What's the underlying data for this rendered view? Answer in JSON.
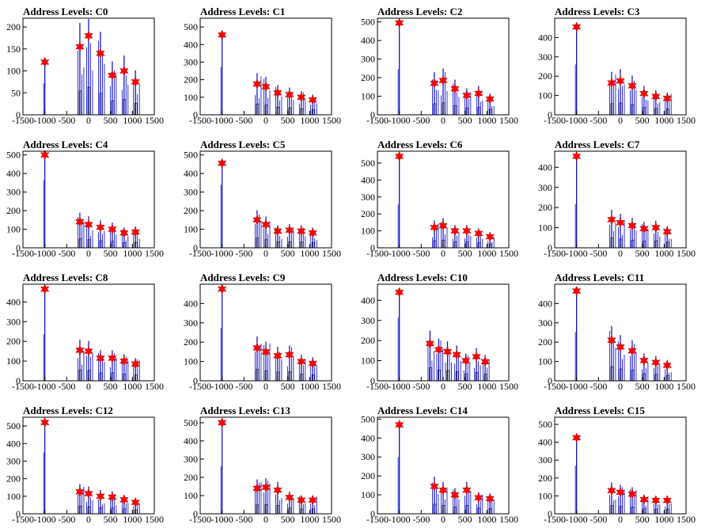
{
  "chart_data": [
    {
      "type": "bar",
      "title": "Address Levels: C0",
      "xlim": [
        -1500,
        1500
      ],
      "ylim": [
        0,
        220
      ],
      "xticks": [
        "-1500",
        "-1000",
        "-500",
        "0",
        "500",
        "1000",
        "1500"
      ],
      "yticks": [
        0,
        50,
        100,
        150,
        200
      ],
      "series": [
        {
          "x": [
            -1000,
            -200,
            0,
            270,
            540,
            810,
            1070
          ],
          "y": [
            120,
            155,
            180,
            140,
            90,
            100,
            75
          ]
        }
      ]
    },
    {
      "type": "bar",
      "title": "Address Levels: C1",
      "xlim": [
        -1500,
        1500
      ],
      "ylim": [
        0,
        550
      ],
      "xticks": [
        "-1500",
        "-1000",
        "-500",
        "0",
        "500",
        "1000",
        "1500"
      ],
      "yticks": [
        0,
        100,
        200,
        300,
        400,
        500
      ],
      "series": [
        {
          "x": [
            -1000,
            -200,
            0,
            270,
            540,
            810,
            1070
          ],
          "y": [
            455,
            175,
            160,
            125,
            115,
            100,
            85
          ]
        }
      ]
    },
    {
      "type": "bar",
      "title": "Address Levels: C2",
      "xlim": [
        -1500,
        1500
      ],
      "ylim": [
        0,
        520
      ],
      "xticks": [
        "-1500",
        "-1000",
        "-500",
        "0",
        "500",
        "1000",
        "1500"
      ],
      "yticks": [
        0,
        100,
        200,
        300,
        400,
        500
      ],
      "series": [
        {
          "x": [
            -1000,
            -200,
            0,
            270,
            540,
            810,
            1070
          ],
          "y": [
            495,
            170,
            185,
            140,
            105,
            115,
            85
          ]
        }
      ]
    },
    {
      "type": "bar",
      "title": "Address Levels: C3",
      "xlim": [
        -1500,
        1500
      ],
      "ylim": [
        0,
        500
      ],
      "xticks": [
        "-1500",
        "-1000",
        "-500",
        "0",
        "500",
        "1000",
        "1500"
      ],
      "yticks": [
        0,
        100,
        200,
        300,
        400
      ],
      "series": [
        {
          "x": [
            -1000,
            -200,
            0,
            270,
            540,
            810,
            1070
          ],
          "y": [
            455,
            165,
            175,
            150,
            110,
            95,
            85
          ]
        }
      ]
    },
    {
      "type": "bar",
      "title": "Address Levels: C4",
      "xlim": [
        -1500,
        1500
      ],
      "ylim": [
        0,
        520
      ],
      "xticks": [
        "-1500",
        "-1000",
        "-500",
        "0",
        "500",
        "1000",
        "1500"
      ],
      "yticks": [
        0,
        100,
        200,
        300,
        400,
        500
      ],
      "series": [
        {
          "x": [
            -1000,
            -200,
            0,
            270,
            540,
            810,
            1070
          ],
          "y": [
            500,
            140,
            125,
            110,
            100,
            80,
            85
          ]
        }
      ]
    },
    {
      "type": "bar",
      "title": "Address Levels: C5",
      "xlim": [
        -1500,
        1500
      ],
      "ylim": [
        0,
        520
      ],
      "xticks": [
        "-1500",
        "-1000",
        "-500",
        "0",
        "500",
        "1000",
        "1500"
      ],
      "yticks": [
        0,
        100,
        200,
        300,
        400,
        500
      ],
      "series": [
        {
          "x": [
            -1000,
            -200,
            0,
            270,
            540,
            810,
            1070
          ],
          "y": [
            455,
            150,
            125,
            90,
            95,
            90,
            80
          ]
        }
      ]
    },
    {
      "type": "bar",
      "title": "Address Levels: C6",
      "xlim": [
        -1500,
        1500
      ],
      "ylim": [
        0,
        570
      ],
      "xticks": [
        "-1500",
        "-1000",
        "-500",
        "0",
        "500",
        "1000",
        "1500"
      ],
      "yticks": [
        0,
        100,
        200,
        300,
        400,
        500
      ],
      "series": [
        {
          "x": [
            -1000,
            -200,
            0,
            270,
            540,
            810,
            1070
          ],
          "y": [
            540,
            120,
            130,
            100,
            100,
            85,
            65
          ]
        }
      ]
    },
    {
      "type": "bar",
      "title": "Address Levels: C7",
      "xlim": [
        -1500,
        1500
      ],
      "ylim": [
        0,
        480
      ],
      "xticks": [
        "-1500",
        "-1000",
        "-500",
        "0",
        "500",
        "1000",
        "1500"
      ],
      "yticks": [
        0,
        100,
        200,
        300,
        400
      ],
      "series": [
        {
          "x": [
            -1000,
            -200,
            0,
            270,
            540,
            810,
            1070
          ],
          "y": [
            455,
            140,
            125,
            110,
            95,
            100,
            80
          ]
        }
      ]
    },
    {
      "type": "bar",
      "title": "Address Levels: C8",
      "xlim": [
        -1500,
        1500
      ],
      "ylim": [
        0,
        490
      ],
      "xticks": [
        "-1500",
        "-1000",
        "-500",
        "0",
        "500",
        "1000",
        "1500"
      ],
      "yticks": [
        0,
        100,
        200,
        300,
        400
      ],
      "series": [
        {
          "x": [
            -1000,
            -200,
            0,
            270,
            540,
            810,
            1070
          ],
          "y": [
            465,
            155,
            150,
            115,
            115,
            100,
            85
          ]
        }
      ]
    },
    {
      "type": "bar",
      "title": "Address Levels: C9",
      "xlim": [
        -1500,
        1500
      ],
      "ylim": [
        0,
        500
      ],
      "xticks": [
        "-1500",
        "-1000",
        "-500",
        "0",
        "500",
        "1000",
        "1500"
      ],
      "yticks": [
        0,
        100,
        200,
        300,
        400
      ],
      "series": [
        {
          "x": [
            -1000,
            -200,
            0,
            270,
            540,
            810,
            1070
          ],
          "y": [
            475,
            170,
            150,
            130,
            135,
            100,
            90
          ]
        }
      ]
    },
    {
      "type": "bar",
      "title": "Address Levels: C10",
      "xlim": [
        -1500,
        1500
      ],
      "ylim": [
        0,
        480
      ],
      "xticks": [
        "-1500",
        "-1000",
        "-500",
        "0",
        "500",
        "1000",
        "1500"
      ],
      "yticks": [
        0,
        100,
        200,
        300,
        400
      ],
      "series": [
        {
          "x": [
            -1000,
            -300,
            -100,
            100,
            310,
            520,
            760,
            960
          ],
          "y": [
            440,
            185,
            155,
            145,
            130,
            100,
            120,
            95
          ]
        }
      ]
    },
    {
      "type": "bar",
      "title": "Address Levels: C11",
      "xlim": [
        -1500,
        1500
      ],
      "ylim": [
        0,
        500
      ],
      "xticks": [
        "-1500",
        "-1000",
        "-500",
        "0",
        "500",
        "1000",
        "1500"
      ],
      "yticks": [
        0,
        100,
        200,
        300,
        400
      ],
      "series": [
        {
          "x": [
            -1000,
            -200,
            0,
            270,
            540,
            810,
            1070
          ],
          "y": [
            465,
            210,
            175,
            155,
            105,
            95,
            80
          ]
        }
      ]
    },
    {
      "type": "bar",
      "title": "Address Levels: C12",
      "xlim": [
        -1500,
        1500
      ],
      "ylim": [
        0,
        550
      ],
      "xticks": [
        "-1500",
        "-1000",
        "-500",
        "0",
        "500",
        "1000",
        "1500"
      ],
      "yticks": [
        0,
        100,
        200,
        300,
        400,
        500
      ],
      "series": [
        {
          "x": [
            -1000,
            -200,
            0,
            270,
            540,
            810,
            1070
          ],
          "y": [
            520,
            125,
            115,
            100,
            95,
            80,
            65
          ]
        }
      ]
    },
    {
      "type": "bar",
      "title": "Address Levels: C13",
      "xlim": [
        -1500,
        1500
      ],
      "ylim": [
        0,
        530
      ],
      "xticks": [
        "-1500",
        "-1000",
        "-500",
        "0",
        "500",
        "1000",
        "1500"
      ],
      "yticks": [
        0,
        100,
        200,
        300,
        400,
        500
      ],
      "series": [
        {
          "x": [
            -1000,
            -200,
            0,
            270,
            540,
            810,
            1070
          ],
          "y": [
            500,
            140,
            145,
            130,
            90,
            75,
            75
          ]
        }
      ]
    },
    {
      "type": "bar",
      "title": "Address Levels: C14",
      "xlim": [
        -1500,
        1500
      ],
      "ylim": [
        0,
        510
      ],
      "xticks": [
        "-1500",
        "-1000",
        "-500",
        "0",
        "500",
        "1000",
        "1500"
      ],
      "yticks": [
        0,
        100,
        200,
        300,
        400,
        500
      ],
      "series": [
        {
          "x": [
            -1000,
            -200,
            0,
            270,
            540,
            810,
            1070
          ],
          "y": [
            470,
            145,
            125,
            100,
            125,
            85,
            80
          ]
        }
      ]
    },
    {
      "type": "bar",
      "title": "Address Levels: C15",
      "xlim": [
        -1500,
        1500
      ],
      "ylim": [
        0,
        540
      ],
      "xticks": [
        "-1500",
        "-1000",
        "-500",
        "0",
        "500",
        "1000",
        "1500"
      ],
      "yticks": [
        0,
        100,
        200,
        300,
        400,
        500
      ],
      "series": [
        {
          "x": [
            -1000,
            -200,
            0,
            270,
            540,
            810,
            1070
          ],
          "y": [
            425,
            130,
            120,
            110,
            80,
            75,
            75
          ]
        }
      ]
    }
  ],
  "colors": {
    "histogram": "#0000cc",
    "marker": "#ff0000",
    "axis": "#000000"
  }
}
